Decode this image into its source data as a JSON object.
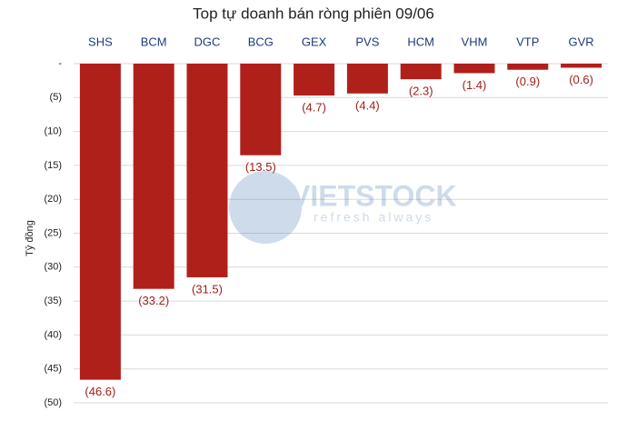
{
  "chart_data": {
    "type": "bar",
    "title": "Top tự doanh bán ròng phiên 09/06",
    "y_label": "Tỷ đồng",
    "categories": [
      "SHS",
      "BCM",
      "DGC",
      "BCG",
      "GEX",
      "PVS",
      "HCM",
      "VHM",
      "VTP",
      "GVR"
    ],
    "values": [
      -46.6,
      -33.2,
      -31.5,
      -13.5,
      -4.7,
      -4.4,
      -2.3,
      -1.4,
      -0.9,
      -0.6
    ],
    "value_labels": [
      "(46.6)",
      "(33.2)",
      "(31.5)",
      "(13.5)",
      "(4.7)",
      "(4.4)",
      "(2.3)",
      "(1.4)",
      "(0.9)",
      "(0.6)"
    ],
    "color": "#b0201b",
    "ylim": [
      -50,
      0
    ],
    "yticks": [
      {
        "value": 0,
        "label": "-"
      },
      {
        "value": -5,
        "label": "(5)"
      },
      {
        "value": -10,
        "label": "(10)"
      },
      {
        "value": -15,
        "label": "(15)"
      },
      {
        "value": -20,
        "label": "(20)"
      },
      {
        "value": -25,
        "label": "(25)"
      },
      {
        "value": -30,
        "label": "(30)"
      },
      {
        "value": -35,
        "label": "(35)"
      },
      {
        "value": -40,
        "label": "(40)"
      },
      {
        "value": -45,
        "label": "(45)"
      },
      {
        "value": -50,
        "label": "(50)"
      }
    ],
    "grid": true,
    "watermark": {
      "brand": "VIETSTOCK",
      "tagline": "refresh always"
    }
  }
}
